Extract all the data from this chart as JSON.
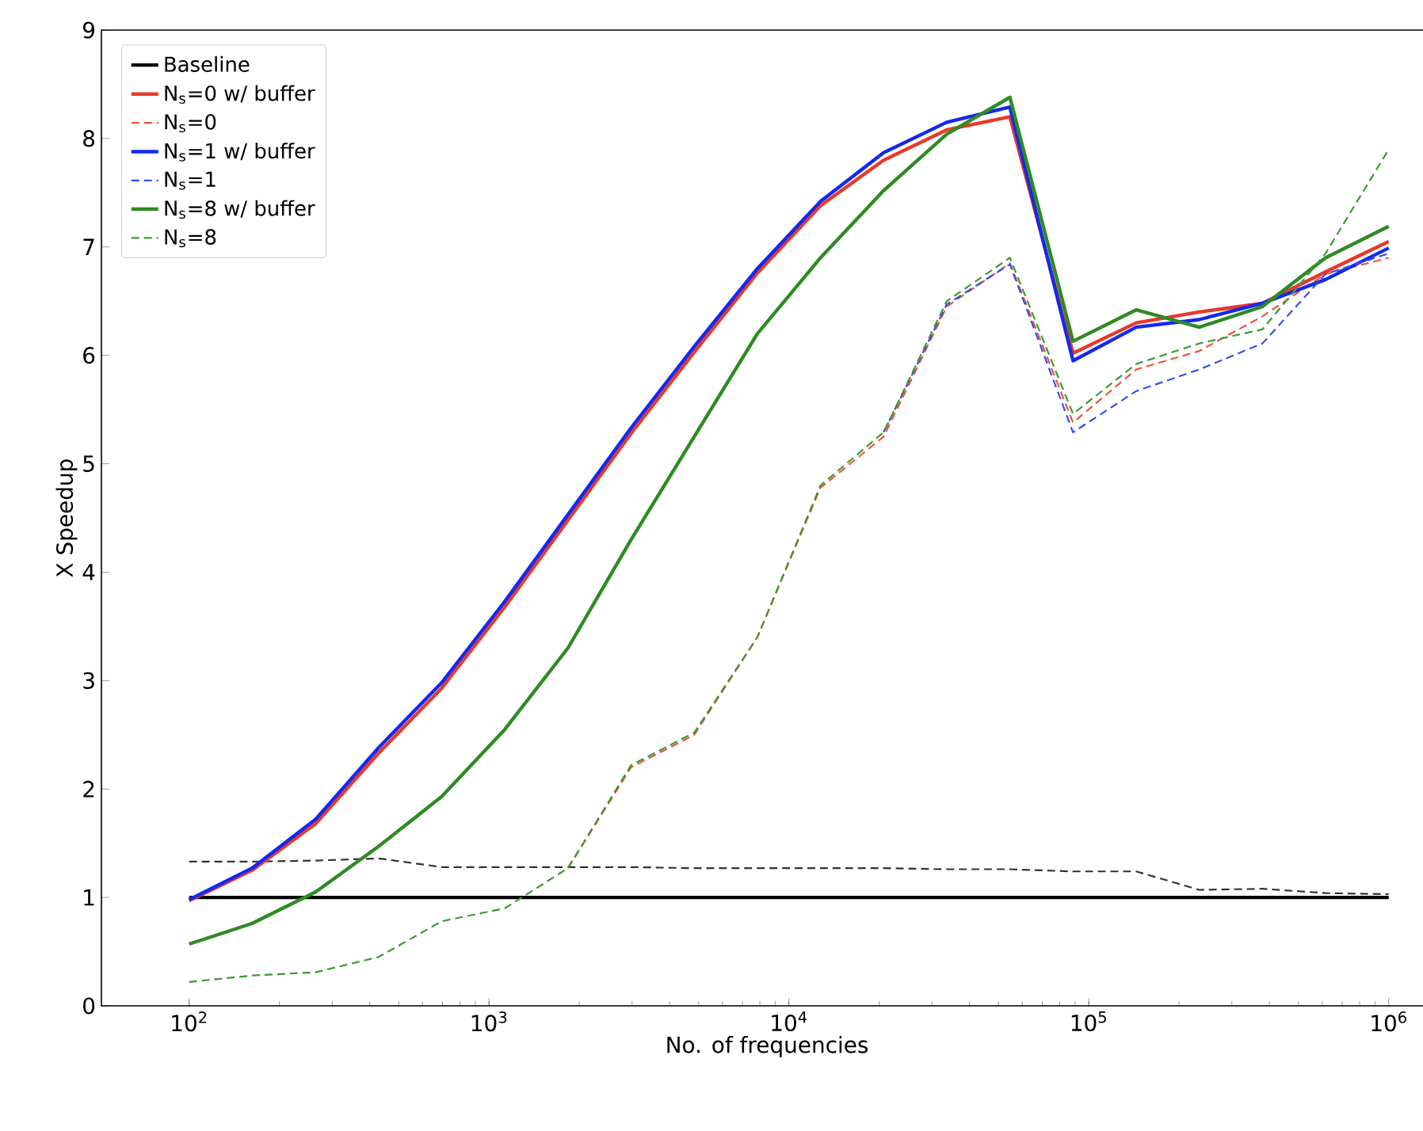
{
  "chart_data": {
    "type": "line",
    "xlabel": "No. of frequencies",
    "ylabel": "X Speedup",
    "log": "x",
    "x": [
      100,
      162,
      264,
      428,
      695,
      1129,
      1833,
      2976,
      4833,
      7848,
      12743,
      20691,
      33598,
      54556,
      88587,
      143845,
      233572,
      379269,
      615848,
      1000000
    ],
    "xlim": [
      51,
      1400000
    ],
    "ylim": [
      0,
      9
    ],
    "xticks": [
      {
        "value": 100,
        "label": "10$^{2}$"
      },
      {
        "value": 1000,
        "label": "10$^{3}$"
      },
      {
        "value": 10000,
        "label": "10$^{4}$"
      },
      {
        "value": 100000,
        "label": "10$^{5}$"
      },
      {
        "value": 1000000,
        "label": "10$^{6}$"
      }
    ],
    "yticks": [
      0,
      1,
      2,
      3,
      4,
      5,
      6,
      7,
      8,
      9
    ],
    "grid": false,
    "legend": "top left",
    "marker": "none",
    "series": [
      {
        "name": "Baseline",
        "color": "#000000",
        "line_style": "solid",
        "values": [
          1,
          1,
          1,
          1,
          1,
          1,
          1,
          1,
          1,
          1,
          1,
          1,
          1,
          1,
          1,
          1,
          1,
          1,
          1,
          1
        ]
      },
      {
        "color": "#333333",
        "line_style": "dashed",
        "values": [
          1.33,
          1.33,
          1.34,
          1.36,
          1.28,
          1.28,
          1.28,
          1.28,
          1.27,
          1.27,
          1.27,
          1.27,
          1.26,
          1.26,
          1.24,
          1.24,
          1.07,
          1.08,
          1.04,
          1.03
        ]
      },
      {
        "name": "N$_{s}$=0 w/ buffer",
        "color": "#e8392a",
        "line_style": "solid",
        "values": [
          0.97,
          1.25,
          1.68,
          2.33,
          2.93,
          3.68,
          4.48,
          5.28,
          6.03,
          6.76,
          7.38,
          7.8,
          8.08,
          8.2,
          6.02,
          6.3,
          6.4,
          6.48,
          6.77,
          7.05
        ]
      },
      {
        "name": "N$_{s}$=0",
        "color": "#f0503e",
        "line_style": "dashed",
        "values": [
          null,
          null,
          null,
          null,
          null,
          null,
          1.27,
          2.2,
          2.5,
          3.4,
          4.78,
          5.25,
          6.45,
          6.85,
          5.38,
          5.87,
          6.04,
          6.36,
          6.75,
          6.9
        ]
      },
      {
        "name": "N$_{s}$=1 w/ buffer",
        "color": "#1428f0",
        "line_style": "solid",
        "values": [
          0.98,
          1.27,
          1.72,
          2.38,
          2.98,
          3.73,
          4.53,
          5.33,
          6.08,
          6.8,
          7.42,
          7.87,
          8.15,
          8.29,
          5.95,
          6.26,
          6.33,
          6.48,
          6.7,
          6.99
        ]
      },
      {
        "name": "N$_{s}$=1",
        "color": "#3050f0",
        "line_style": "dashed",
        "values": [
          null,
          null,
          null,
          null,
          null,
          null,
          null,
          null,
          null,
          null,
          null,
          5.29,
          6.47,
          6.84,
          5.29,
          5.67,
          5.87,
          6.11,
          6.75,
          6.94
        ]
      },
      {
        "name": "N$_{s}$=8 w/ buffer",
        "color": "#2e8b22",
        "line_style": "solid",
        "values": [
          0.57,
          0.76,
          1.05,
          1.47,
          1.93,
          2.55,
          3.3,
          4.3,
          5.25,
          6.2,
          6.9,
          7.52,
          8.04,
          8.38,
          6.13,
          6.42,
          6.26,
          6.45,
          6.9,
          7.19
        ]
      },
      {
        "name": "N$_{s}$=8",
        "color": "#3c9a30",
        "line_style": "dashed",
        "values": [
          0.22,
          0.28,
          0.31,
          0.45,
          0.78,
          0.9,
          1.27,
          2.22,
          2.52,
          3.4,
          4.8,
          5.29,
          6.5,
          6.9,
          5.46,
          5.92,
          6.11,
          6.24,
          6.94,
          7.9
        ]
      }
    ]
  }
}
